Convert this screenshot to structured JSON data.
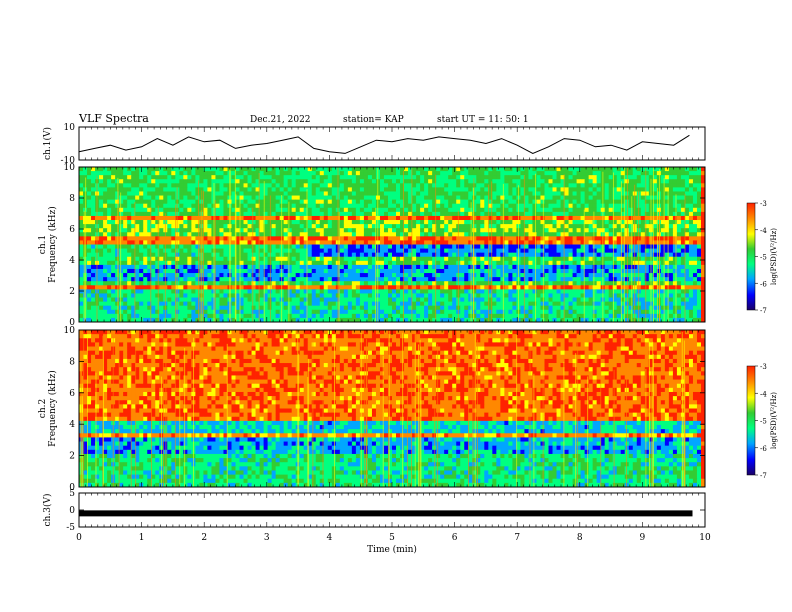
{
  "header": {
    "title": "VLF  Spectra",
    "date": "Dec.21, 2022",
    "station": "station= KAP",
    "start": "start  UT =   11: 50: 1"
  },
  "colors": {
    "scale": [
      "#1a0066",
      "#0000ff",
      "#00a6ff",
      "#00ff80",
      "#33cc33",
      "#ffff00",
      "#ff8800",
      "#ff2200",
      "#ffffff"
    ]
  },
  "chart_data": [
    {
      "type": "line",
      "panel": "ch1-voltage",
      "ylabel": "ch.1(V)",
      "ylim": [
        -10,
        10
      ],
      "yticks": [
        "10",
        "-10"
      ],
      "xlim": [
        0,
        10
      ],
      "x": [
        0,
        0.25,
        0.5,
        0.75,
        1.0,
        1.25,
        1.5,
        1.75,
        2.0,
        2.25,
        2.5,
        2.75,
        3.0,
        3.25,
        3.5,
        3.75,
        4.0,
        4.25,
        4.5,
        4.75,
        5.0,
        5.25,
        5.5,
        5.75,
        6.0,
        6.25,
        6.5,
        6.75,
        7.0,
        7.25,
        7.5,
        7.75,
        8.0,
        8.25,
        8.5,
        8.75,
        9.0,
        9.25,
        9.5,
        9.75
      ],
      "values": [
        -5,
        -3,
        -1,
        -4,
        -2,
        3,
        -1,
        4,
        1,
        2,
        -3,
        -1,
        0,
        2,
        4,
        -3,
        -5,
        -6,
        -2,
        2,
        1,
        3,
        2,
        4,
        3,
        2,
        0,
        3,
        -1,
        -6,
        -2,
        3,
        2,
        -2,
        -1,
        -4,
        1,
        0,
        -1,
        5
      ]
    },
    {
      "type": "heatmap",
      "panel": "ch1-spectrogram",
      "ylabel": "ch.1\nFrequency (kHz)",
      "ylim": [
        0,
        10
      ],
      "yticks": [
        "0",
        "2",
        "4",
        "6",
        "8",
        "10"
      ],
      "xlim": [
        0,
        10
      ],
      "colorbar": {
        "label": "log(PSD)(V²/Hz)",
        "range": [
          -7,
          -3
        ],
        "ticks": [
          "-3",
          "-4",
          "-5",
          "-6",
          "-7"
        ]
      }
    },
    {
      "type": "heatmap",
      "panel": "ch2-spectrogram",
      "ylabel": "ch.2\nFrequency (kHz)",
      "ylim": [
        0,
        10
      ],
      "yticks": [
        "0",
        "2",
        "4",
        "6",
        "8",
        "10"
      ],
      "xlim": [
        0,
        10
      ],
      "colorbar": {
        "label": "log(PSD)(V²/Hz)",
        "range": [
          -7,
          -3
        ],
        "ticks": [
          "-3",
          "-4",
          "-5",
          "-6",
          "-7"
        ]
      }
    },
    {
      "type": "line",
      "panel": "ch3-voltage",
      "ylabel": "ch.3(V)",
      "ylim": [
        -5,
        5
      ],
      "yticks": [
        "5",
        "0",
        "-5"
      ],
      "xlim": [
        0,
        10
      ],
      "xlabel": "Time  (min)",
      "xticks": [
        "0",
        "1",
        "2",
        "3",
        "4",
        "5",
        "6",
        "7",
        "8",
        "9",
        "10"
      ],
      "x": [
        0,
        9.8
      ],
      "values": [
        -1,
        -1
      ]
    }
  ]
}
